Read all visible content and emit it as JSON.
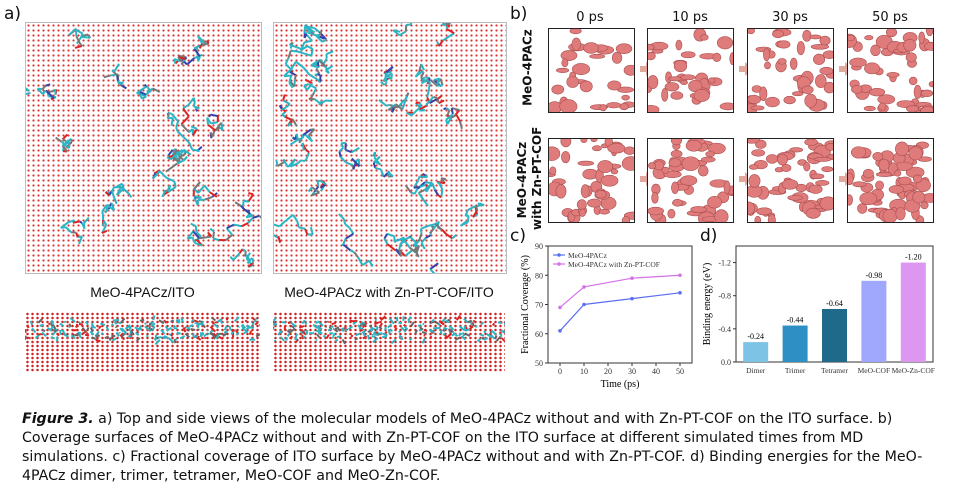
{
  "panel_labels": {
    "a": "a)",
    "b": "b)",
    "c": "c)",
    "d": "d)"
  },
  "panel_a": {
    "left_caption": "MeO-4PACz/ITO",
    "right_caption": "MeO-4PACz with Zn-PT-COF/ITO"
  },
  "panel_b": {
    "time_headers": [
      "0 ps",
      "10 ps",
      "30 ps",
      "50 ps"
    ],
    "row_labels": [
      [
        "MeO-4PACz"
      ],
      [
        "MeO-4PACz",
        "with Zn-PT-COF"
      ]
    ],
    "surface_color": "#e07b7b"
  },
  "chart_data": [
    {
      "type": "line",
      "panel": "c",
      "x": [
        0,
        10,
        30,
        50
      ],
      "series": [
        {
          "name": "MeO-4PACz",
          "values": [
            61,
            70,
            72,
            74
          ],
          "color": "#5b6ff0"
        },
        {
          "name": "MeO-4PACz with Zn-PT-COF",
          "values": [
            69,
            76,
            79,
            80
          ],
          "color": "#d670e8"
        }
      ],
      "xlabel": "Time (ps)",
      "ylabel": "Fractional Coverage (%)",
      "xlim": [
        -5,
        55
      ],
      "ylim": [
        50,
        90
      ],
      "xticks": [
        0,
        10,
        20,
        30,
        40,
        50
      ],
      "yticks": [
        50,
        60,
        70,
        80,
        90
      ],
      "legend": "top-left"
    },
    {
      "type": "bar",
      "panel": "d",
      "categories": [
        "Dimer",
        "Trimer",
        "Tetramer",
        "MeO-COF",
        "MeO-Zn-COF"
      ],
      "values": [
        -0.24,
        -0.44,
        -0.64,
        -0.98,
        -1.2
      ],
      "labels": [
        "-0.24",
        "-0.44",
        "-0.64",
        "-0.98",
        "-1.20"
      ],
      "colors": [
        "#7cc3e6",
        "#2d8fc3",
        "#1f6a8b",
        "#9fa8fd",
        "#dc98f0"
      ],
      "ylabel": "Binding energy (eV)",
      "ylim": [
        0,
        -1.4
      ],
      "yticks": [
        0.0,
        -0.4,
        -0.8,
        -1.2
      ],
      "ytick_labels": [
        "0.0",
        "-0.4",
        "-0.8",
        "-1.2"
      ]
    }
  ],
  "caption": {
    "label": "Figure 3.",
    "text": " a) Top and side views of the molecular models of MeO-4PACz without and with Zn-PT-COF on the ITO surface. b) Coverage surfaces of MeO-4PACz without and with Zn-PT-COF on the ITO surface at different simulated times from MD simulations. c) Fractional coverage of ITO surface by MeO-4PACz without and with Zn-PT-COF. d) Binding energies for the MeO-4PACz dimer, trimer, tetramer, MeO-COF and MeO-Zn-COF."
  }
}
